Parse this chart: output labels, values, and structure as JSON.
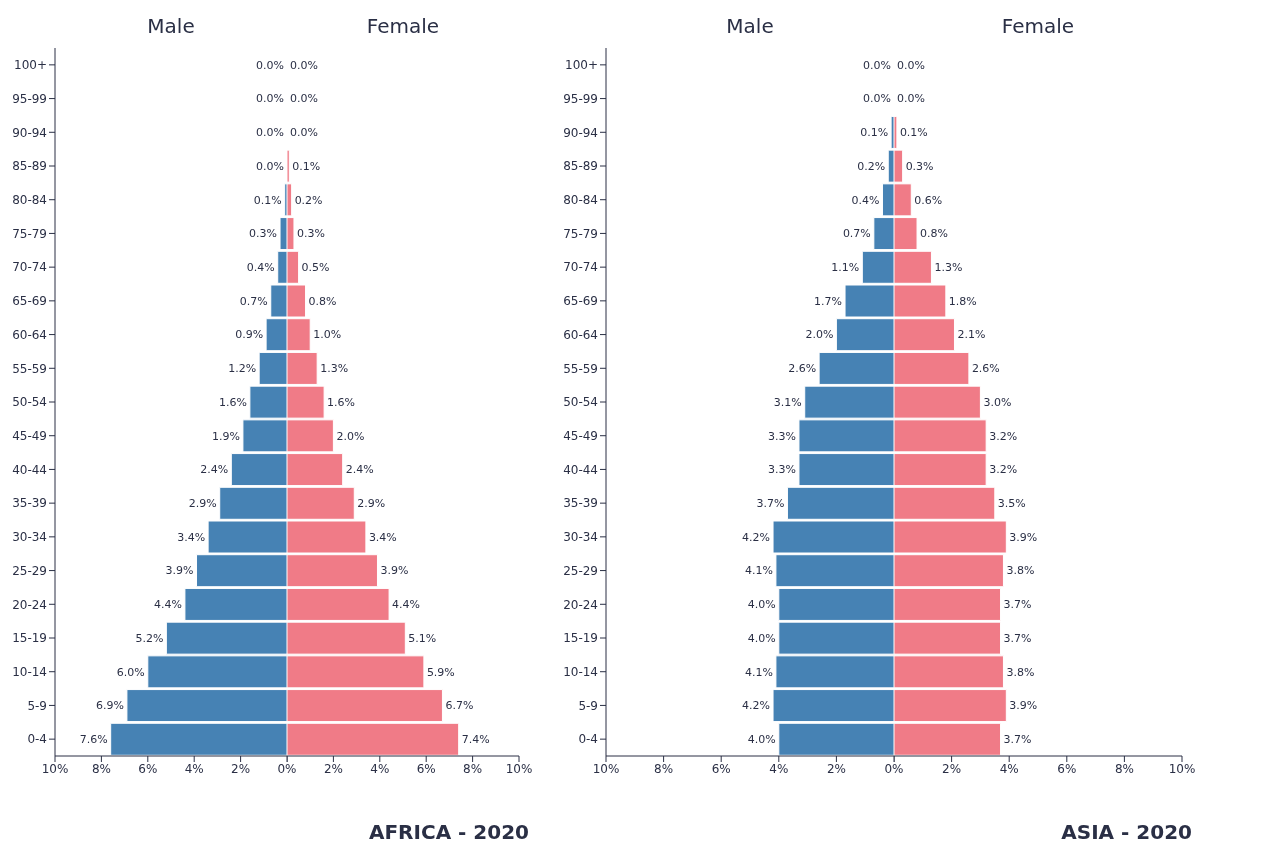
{
  "chart_data": [
    {
      "type": "bar",
      "orientation": "horizontal",
      "title": "Male",
      "categories": [
        "100+",
        "95-99",
        "90-94",
        "85-89",
        "80-84",
        "75-79",
        "70-74",
        "65-69",
        "60-64",
        "55-59",
        "50-54",
        "45-49",
        "40-44",
        "35-39",
        "30-34",
        "25-29",
        "20-24",
        "15-19",
        "10-14",
        "5-9",
        "0-4"
      ],
      "series": [
        {
          "color": "#4682b4",
          "values": [
            0.0,
            0.0,
            0.0,
            0.0,
            0.1,
            0.3,
            0.4,
            0.7,
            0.9,
            1.2,
            1.6,
            1.9,
            2.4,
            2.9,
            3.4,
            3.9,
            4.4,
            5.2,
            6.0,
            6.9,
            7.6
          ],
          "value_labels": [
            "0.0%",
            "0.0%",
            "0.0%",
            "0.0%",
            "0.1%",
            "0.3%",
            "0.4%",
            "0.7%",
            "0.9%",
            "1.2%",
            "1.6%",
            "1.9%",
            "2.4%",
            "2.9%",
            "3.4%",
            "3.9%",
            "4.4%",
            "5.2%",
            "6.0%",
            "6.9%",
            "7.6%"
          ]
        }
      ],
      "xlim": [
        10,
        0
      ],
      "xticks": [
        {
          "value": 10,
          "label": "10%"
        },
        {
          "value": 8,
          "label": "8%"
        },
        {
          "value": 6,
          "label": "6%"
        },
        {
          "value": 4,
          "label": "4%"
        },
        {
          "value": 2,
          "label": "2%"
        },
        {
          "value": 0,
          "label": "0%"
        }
      ]
    },
    {
      "type": "bar",
      "orientation": "horizontal",
      "title": "Female",
      "annotations": [
        "AFRICA - 2020"
      ],
      "categories": [
        null,
        null,
        null,
        null,
        null,
        null,
        null,
        null,
        null,
        null,
        null,
        null,
        null,
        null,
        null,
        null,
        null,
        null,
        null,
        null,
        null
      ],
      "series": [
        {
          "color": "#f07b87",
          "values": [
            0.0,
            0.0,
            0.0,
            0.1,
            0.2,
            0.3,
            0.5,
            0.8,
            1.0,
            1.3,
            1.6,
            2.0,
            2.4,
            2.9,
            3.4,
            3.9,
            4.4,
            5.1,
            5.9,
            6.7,
            7.4
          ],
          "value_labels": [
            "0.0%",
            "0.0%",
            "0.0%",
            "0.1%",
            "0.2%",
            "0.3%",
            "0.5%",
            "0.8%",
            "1.0%",
            "1.3%",
            "1.6%",
            "2.0%",
            "2.4%",
            "2.9%",
            "3.4%",
            "3.9%",
            "4.4%",
            "5.1%",
            "5.9%",
            "6.7%",
            "7.4%"
          ]
        }
      ],
      "xlim": [
        0,
        10
      ],
      "xticks": [
        {
          "value": 0,
          "label": null
        },
        {
          "value": 2,
          "label": "2%"
        },
        {
          "value": 4,
          "label": "4%"
        },
        {
          "value": 6,
          "label": "6%"
        },
        {
          "value": 8,
          "label": "8%"
        },
        {
          "value": 10,
          "label": "10%"
        }
      ],
      "tick_labels": "x"
    },
    {
      "type": "bar",
      "orientation": "horizontal",
      "title": "Male",
      "categories": [
        "100+",
        "95-99",
        "90-94",
        "85-89",
        "80-84",
        "75-79",
        "70-74",
        "65-69",
        "60-64",
        "55-59",
        "50-54",
        "45-49",
        "40-44",
        "35-39",
        "30-34",
        "25-29",
        "20-24",
        "15-19",
        "10-14",
        "5-9",
        "0-4"
      ],
      "series": [
        {
          "color": "#4682b4",
          "values": [
            0.0,
            0.0,
            0.1,
            0.2,
            0.4,
            0.7,
            1.1,
            1.7,
            2.0,
            2.6,
            3.1,
            3.3,
            3.3,
            3.7,
            4.2,
            4.1,
            4.0,
            4.0,
            4.1,
            4.2,
            4.0
          ],
          "value_labels": [
            "0.0%",
            "0.0%",
            "0.1%",
            "0.2%",
            "0.4%",
            "0.7%",
            "1.1%",
            "1.7%",
            "2.0%",
            "2.6%",
            "3.1%",
            "3.3%",
            "3.3%",
            "3.7%",
            "4.2%",
            "4.1%",
            "4.0%",
            "4.0%",
            "4.1%",
            "4.2%",
            "4.0%"
          ]
        }
      ],
      "xlim": [
        10,
        0
      ],
      "xticks": [
        {
          "value": 10,
          "label": "10%"
        },
        {
          "value": 8,
          "label": "8%"
        },
        {
          "value": 6,
          "label": "6%"
        },
        {
          "value": 4,
          "label": "4%"
        },
        {
          "value": 2,
          "label": "2%"
        },
        {
          "value": 0,
          "label": "0%"
        }
      ]
    },
    {
      "type": "bar",
      "orientation": "horizontal",
      "title": "Female",
      "annotations": [
        "ASIA - 2020"
      ],
      "categories": [
        null,
        null,
        null,
        null,
        null,
        null,
        null,
        null,
        null,
        null,
        null,
        null,
        null,
        null,
        null,
        null,
        null,
        null,
        null,
        null,
        null
      ],
      "series": [
        {
          "color": "#f07b87",
          "values": [
            0.0,
            0.0,
            0.1,
            0.3,
            0.6,
            0.8,
            1.3,
            1.8,
            2.1,
            2.6,
            3.0,
            3.2,
            3.2,
            3.5,
            3.9,
            3.8,
            3.7,
            3.7,
            3.8,
            3.9,
            3.7
          ],
          "value_labels": [
            "0.0%",
            "0.0%",
            "0.1%",
            "0.3%",
            "0.6%",
            "0.8%",
            "1.3%",
            "1.8%",
            "2.1%",
            "2.6%",
            "3.0%",
            "3.2%",
            "3.2%",
            "3.5%",
            "3.9%",
            "3.8%",
            "3.7%",
            "3.7%",
            "3.8%",
            "3.9%",
            "3.7%"
          ]
        }
      ],
      "xlim": [
        0,
        10
      ],
      "xticks": [
        {
          "value": 0,
          "label": null
        },
        {
          "value": 2,
          "label": "2%"
        },
        {
          "value": 4,
          "label": "4%"
        },
        {
          "value": 6,
          "label": "6%"
        },
        {
          "value": 8,
          "label": "8%"
        },
        {
          "value": 10,
          "label": "10%"
        }
      ],
      "tick_labels": "x"
    }
  ]
}
